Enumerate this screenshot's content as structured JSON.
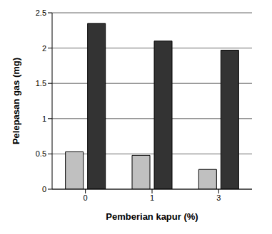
{
  "chart_data": {
    "type": "bar",
    "x_label": "Pemberian kapur (%)",
    "y_label": "Pelepasan gas (mg)",
    "categories": [
      "0",
      "1",
      "3"
    ],
    "series": [
      {
        "color": "#c0c0c0",
        "values": [
          0.53,
          0.48,
          0.28
        ]
      },
      {
        "color": "#333333",
        "values": [
          2.35,
          2.1,
          1.97
        ]
      }
    ],
    "ylim": [
      0,
      2.5
    ],
    "yticks": [
      0,
      0.5,
      1,
      1.5,
      2,
      2.5
    ],
    "grid": true
  }
}
